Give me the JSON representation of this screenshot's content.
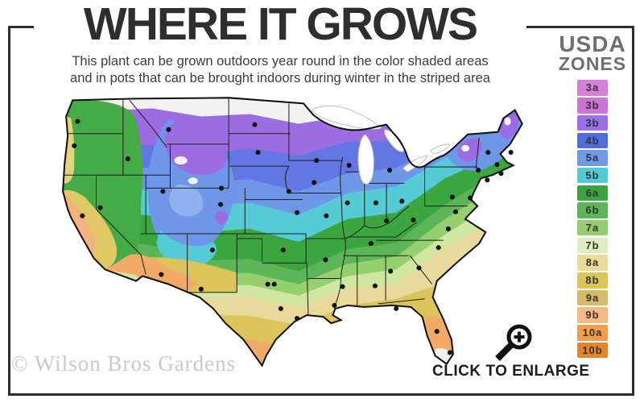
{
  "header": {
    "title": "WHERE IT GROWS",
    "subtitle_line1": "This plant can be grown outdoors year round in the color shaded areas",
    "subtitle_line2": "and in pots that can be brought indoors during winter in the striped area"
  },
  "legend": {
    "title_line1": "USDA",
    "title_line2": "ZONES",
    "zones": [
      {
        "label": "3a",
        "color": "#d67fd8"
      },
      {
        "label": "3b",
        "color": "#cb74d4"
      },
      {
        "label": "3b",
        "color": "#9a6fe8"
      },
      {
        "label": "4b",
        "color": "#4f6edb"
      },
      {
        "label": "5a",
        "color": "#6f9ae8"
      },
      {
        "label": "5b",
        "color": "#55cbd6"
      },
      {
        "label": "6a",
        "color": "#3da540"
      },
      {
        "label": "6b",
        "color": "#5cb657"
      },
      {
        "label": "7a",
        "color": "#92cc70"
      },
      {
        "label": "7b",
        "color": "#dcedc0"
      },
      {
        "label": "8a",
        "color": "#e9d99b"
      },
      {
        "label": "8b",
        "color": "#dcc35a"
      },
      {
        "label": "9a",
        "color": "#d3bd6b"
      },
      {
        "label": "9b",
        "color": "#f4ba85"
      },
      {
        "label": "10a",
        "color": "#f09d4e"
      },
      {
        "label": "10b",
        "color": "#e2852e"
      }
    ]
  },
  "map": {
    "description": "USDA hardiness zone map of the continental United States with state borders and city dots",
    "striped_area_note": "south Florida tip shown white/striped"
  },
  "footer": {
    "watermark": "© Wilson Bros Gardens",
    "enlarge_label": "CLICK TO ENLARGE"
  }
}
